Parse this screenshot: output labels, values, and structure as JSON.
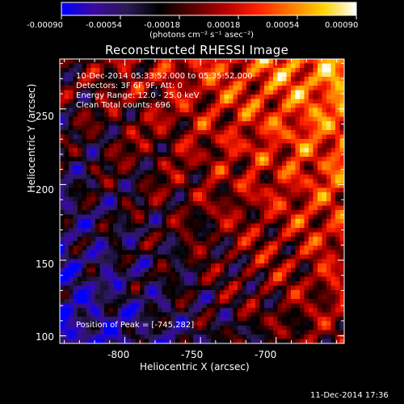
{
  "colorbar": {
    "tick_labels": [
      "-0.00090",
      "-0.00054",
      "-0.00018",
      "0.00018",
      "0.00054",
      "0.00090"
    ],
    "range": [
      -0.0009,
      0.0009
    ],
    "unit_label": "(photons cm⁻² s⁻¹ asec⁻²)"
  },
  "chart_data": {
    "type": "heatmap",
    "title": "Reconstructed RHESSI Image",
    "xlabel": "Heliocentric X (arcsec)",
    "ylabel": "Heliocentric Y (arcsec)",
    "xlim": [
      -843,
      -655
    ],
    "ylim": [
      95,
      283
    ],
    "x_ticks": [
      -800,
      -750,
      -700
    ],
    "y_ticks": [
      100,
      150,
      200,
      250
    ],
    "x_tick_labels": [
      "-800",
      "-750",
      "-700"
    ],
    "y_tick_labels": [
      "100",
      "150",
      "200",
      "250"
    ],
    "colormap": [
      "#0000ff",
      "#3a0aa0",
      "#2a1a55",
      "#000000",
      "#5a0000",
      "#b40000",
      "#ff2200",
      "#ff7a00",
      "#ffd200",
      "#ffffff"
    ],
    "peak_position": [
      -745,
      282
    ],
    "annotations": [
      "10-Dec-2014 05:33:52.000 to 05:35:52.000",
      "Detectors: 3F 6F 9F, Att: 0",
      "Energy Range: 12.0 - 25.0 keV",
      "Clean    Total counts: 696",
      "Position of Peak = [-745,282]"
    ]
  },
  "footer": {
    "timestamp": "11-Dec-2014 17:36"
  }
}
